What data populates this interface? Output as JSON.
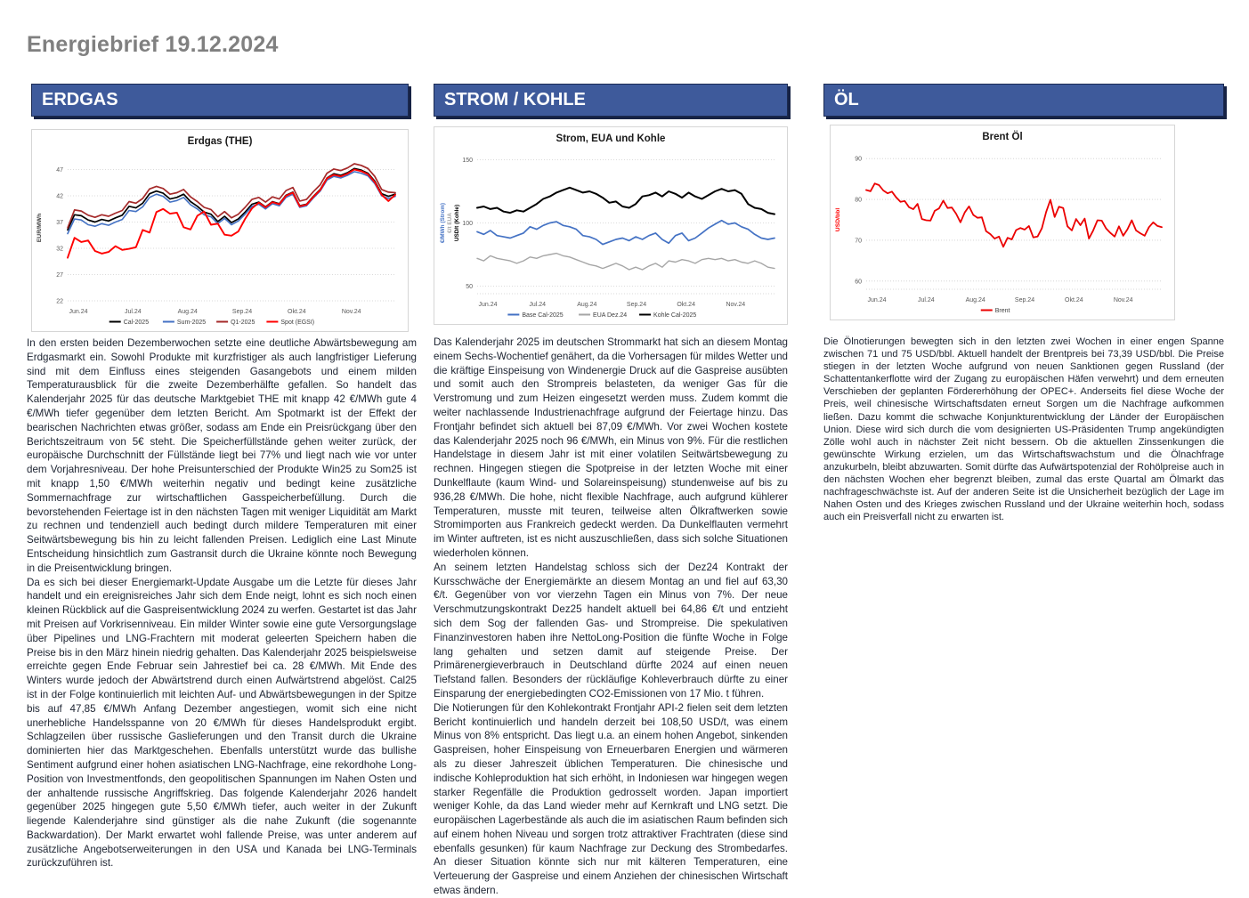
{
  "page": {
    "title": "Energiebrief 19.12.2024"
  },
  "colors": {
    "header_bg": "#3e5a9b",
    "header_shadow": "#162244",
    "title_gray": "#808080",
    "body_text": "#1c2331",
    "series_black": "#000000",
    "series_blue": "#4472c4",
    "series_darkred": "#a52a2a",
    "series_red": "#ff0000",
    "series_gray": "#a6a6a6"
  },
  "columns": [
    {
      "id": "erdgas",
      "header": "ERDGAS",
      "paragraphs": [
        "In den ersten beiden Dezemberwochen setzte eine deutliche Abwärtsbewegung am Erdgasmarkt ein. Sowohl Produkte mit kurzfristiger als auch langfristiger Lieferung sind mit dem Einfluss eines steigenden Gasangebots und einem milden Temperaturausblick für die zweite Dezemberhälfte gefallen. So handelt das Kalenderjahr 2025 für das deutsche Marktgebiet THE mit knapp 42 €/MWh gute 4 €/MWh tiefer gegenüber dem letzten Bericht. Am Spotmarkt ist der Effekt der bearischen Nachrichten etwas größer, sodass am Ende ein Preisrückgang über den Berichtszeitraum von 5€ steht. Die Speicherfüllstände gehen weiter zurück, der europäische Durchschnitt der Füllstände liegt bei 77% und liegt nach wie vor unter dem Vorjahresniveau. Der hohe Preisunterschied der Produkte Win25 zu Som25 ist mit knapp 1,50 €/MWh weiterhin negativ und bedingt keine zusätzliche Sommernachfrage zur wirtschaftlichen Gasspeicherbefüllung. Durch die bevorstehenden Feiertage ist in den nächsten Tagen mit weniger Liquidität am Markt zu rechnen und tendenziell auch bedingt durch mildere Temperaturen mit einer Seitwärtsbewegung bis hin zu leicht fallenden Preisen. Lediglich eine Last Minute Entscheidung hinsichtlich zum Gastransit durch die Ukraine könnte noch Bewegung in die Preisentwicklung bringen.",
        "Da es sich bei dieser Energiemarkt-Update Ausgabe um die Letzte für dieses Jahr handelt und ein ereignisreiches Jahr sich dem Ende neigt, lohnt es sich noch einen kleinen Rückblick auf die Gaspreisentwicklung 2024 zu werfen. Gestartet ist das Jahr mit Preisen auf Vorkrisenniveau. Ein milder Winter sowie eine gute Versorgungslage über Pipelines und LNG-Frachtern mit moderat geleerten Speichern haben die Preise bis in den März hinein niedrig gehalten. Das Kalenderjahr 2025 beispielsweise erreichte gegen Ende Februar sein Jahrestief bei ca. 28 €/MWh. Mit Ende des Winters wurde jedoch der Abwärtstrend durch einen Aufwärtstrend abgelöst. Cal25 ist in der Folge kontinuierlich mit leichten Auf- und Abwärtsbewegungen in der Spitze bis auf 47,85 €/MWh Anfang Dezember angestiegen, womit sich eine nicht unerhebliche Handelsspanne von 20 €/MWh für dieses Handelsprodukt ergibt. Schlagzeilen über russische Gaslieferungen und den Transit durch die Ukraine dominierten hier das Marktgeschehen. Ebenfalls unterstützt wurde das bullishe Sentiment aufgrund einer hohen asiatischen LNG-Nachfrage, eine rekordhohe Long-Position von Investmentfonds, den geopolitischen Spannungen im Nahen Osten und der anhaltende russische Angriffskrieg. Das folgende Kalenderjahr 2026 handelt gegenüber 2025 hingegen gute 5,50 €/MWh tiefer, auch weiter in der Zukunft liegende Kalenderjahre sind günstiger als die nahe Zukunft (die sogenannte Backwardation). Der Markt erwartet wohl fallende Preise, was unter anderem auf zusätzliche Angebotserweiterungen in den USA und Kanada bei LNG-Terminals zurückzuführen ist."
      ]
    },
    {
      "id": "strom-kohle",
      "header": "STROM / KOHLE",
      "paragraphs": [
        "Das Kalenderjahr 2025 im deutschen Strommarkt hat sich an diesem Montag einem Sechs-Wochentief genähert, da die Vorhersagen für mildes Wetter und die kräftige Einspeisung von Windenergie Druck auf die Gaspreise ausübten und somit auch den Strompreis belasteten, da weniger Gas für die Verstromung und zum Heizen eingesetzt werden muss. Zudem kommt die weiter nachlassende Industrienachfrage aufgrund der Feiertage hinzu. Das Frontjahr befindet sich aktuell bei 87,09 €/MWh. Vor zwei Wochen kostete das Kalenderjahr 2025 noch 96 €/MWh, ein Minus von 9%. Für die restlichen Handelstage in diesem Jahr ist mit einer volatilen Seitwärtsbewegung zu rechnen. Hingegen stiegen die Spotpreise in der letzten Woche mit einer Dunkelflaute (kaum Wind- und Solareinspeisung) stundenweise auf bis zu 936,28 €/MWh. Die hohe, nicht flexible Nachfrage, auch aufgrund kühlerer Temperaturen, musste mit teuren, teilweise alten Ölkraftwerken sowie Stromimporten aus Frankreich gedeckt werden. Da Dunkelflauten vermehrt im Winter auftreten, ist es nicht auszuschließen, dass sich solche Situationen wiederholen können.",
        "An seinem letzten Handelstag schloss sich der Dez24 Kontrakt der Kursschwäche der Energiemärkte an diesem Montag an und fiel auf 63,30 €/t. Gegenüber von vor vierzehn Tagen ein Minus von 7%. Der neue Verschmutzungskontrakt Dez25 handelt aktuell bei 64,86 €/t und entzieht sich dem Sog der fallenden Gas- und Strompreise. Die spekulativen Finanzinvestoren haben ihre NettoLong-Position die fünfte Woche in Folge lang gehalten und setzen damit auf steigende Preise. Der Primärenergieverbrauch in Deutschland dürfte 2024 auf einen neuen Tiefstand fallen. Besonders der rückläufige Kohleverbrauch dürfte zu einer Einsparung der energiebedingten CO2-Emissionen von 17 Mio. t führen.",
        "Die Notierungen für den Kohlekontrakt Frontjahr API-2 fielen seit dem letzten Bericht kontinuierlich und handeln derzeit bei 108,50 USD/t, was einem Minus von 8% entspricht. Das liegt u.a. an einem hohen Angebot, sinkenden Gaspreisen, hoher Einspeisung von Erneuerbaren Energien und wärmeren als zu dieser Jahreszeit üblichen Temperaturen. Die chinesische und indische Kohleproduktion hat sich erhöht, in Indoniesen war hingegen wegen starker Regenfälle die Produktion gedrosselt worden. Japan importiert weniger Kohle, da das Land wieder mehr auf Kernkraft und LNG setzt. Die europäischen Lagerbestände als auch die im asiatischen Raum befinden sich auf einem hohen Niveau und sorgen trotz attraktiver Frachtraten (diese sind ebenfalls gesunken) für kaum Nachfrage zur Deckung des Strombedarfes. An dieser Situation könnte sich nur mit kälteren Temperaturen, eine Verteuerung der Gaspreise und einem Anziehen der chinesischen Wirtschaft etwas ändern."
      ]
    },
    {
      "id": "oel",
      "header": "ÖL",
      "paragraphs": [
        "Die Ölnotierungen bewegten sich in den letzten zwei Wochen in einer engen Spanne zwischen 71 und 75 USD/bbl. Aktuell handelt der Brentpreis bei 73,39 USD/bbl. Die Preise stiegen in der letzten Woche aufgrund von neuen Sanktionen gegen Russland (der Schattentankerflotte wird der Zugang zu europäischen Häfen verwehrt) und dem erneuten Verschieben der geplanten Fördererhöhung der OPEC+. Anderseits fiel diese Woche der Preis, weil chinesische Wirtschaftsdaten erneut Sorgen um die Nachfrage aufkommen ließen. Dazu kommt die schwache Konjunkturentwicklung der Länder der Europäischen Union. Diese wird sich durch die vom designierten US-Präsidenten Trump angekündigten Zölle wohl auch in nächster Zeit nicht bessern. Ob die aktuellen Zinssenkungen die gewünschte Wirkung erzielen, um das Wirtschaftswachstum und die Ölnachfrage anzukurbeln, bleibt abzuwarten. Somit dürfte das Aufwärtspotenzial der Rohölpreise auch in den nächsten Wochen eher begrenzt bleiben, zumal das erste Quartal am Ölmarkt das nachfrageschwächste ist. Auf der anderen Seite ist die Unsicherheit bezüglich der Lage im Nahen Osten und des Krieges zwischen Russland und der Ukraine weiterhin hoch, sodass auch ein Preisverfall nicht zu erwarten ist."
      ]
    }
  ],
  "chart_data": [
    {
      "type": "line",
      "title": "Erdgas (THE)",
      "ylabel": "EUR/MWh",
      "ylabel_color": "#404040",
      "ylim": [
        22,
        49.8
      ],
      "yticks": [
        22,
        27,
        32,
        37,
        42,
        47
      ],
      "x_ticks": [
        "Jun.24",
        "Jul.24",
        "Aug.24",
        "Sep.24",
        "Okt.24",
        "Nov.24"
      ],
      "grid": true,
      "legend_position": "bottom",
      "series": [
        {
          "name": "Cal-2025",
          "color": "#000000",
          "width": 1.7,
          "values": [
            35.5,
            38.4,
            38.2,
            37.4,
            37.0,
            37.5,
            37.2,
            37.8,
            38.3,
            40.0,
            39.7,
            40.6,
            42.4,
            42.9,
            42.5,
            41.4,
            41.7,
            42.3,
            40.9,
            40.0,
            38.9,
            38.5,
            37.1,
            38.1,
            36.9,
            37.6,
            38.9,
            40.4,
            40.8,
            39.9,
            40.9,
            40.5,
            42.1,
            42.7,
            40.1,
            40.4,
            41.9,
            43.2,
            45.4,
            46.2,
            45.9,
            46.4,
            47.2,
            46.9,
            46.3,
            44.8,
            42.4,
            41.9,
            42.3
          ]
        },
        {
          "name": "Sum-2025",
          "color": "#4472c4",
          "width": 1.6,
          "values": [
            34.8,
            37.6,
            37.4,
            36.5,
            36.2,
            36.7,
            36.4,
            37.0,
            37.5,
            39.2,
            39.0,
            39.9,
            41.7,
            42.3,
            41.9,
            40.8,
            41.1,
            41.7,
            40.3,
            39.5,
            38.4,
            38.0,
            36.7,
            37.7,
            36.5,
            37.2,
            38.5,
            40.0,
            40.4,
            39.5,
            40.5,
            40.1,
            41.7,
            42.3,
            39.8,
            40.1,
            41.6,
            42.9,
            45.0,
            45.7,
            45.4,
            45.9,
            46.6,
            46.3,
            45.8,
            44.3,
            42.0,
            41.5,
            41.9
          ]
        },
        {
          "name": "Q1-2025",
          "color": "#a52a2a",
          "width": 1.7,
          "values": [
            35.9,
            39.3,
            39.1,
            38.3,
            37.9,
            38.4,
            38.1,
            38.7,
            39.2,
            40.9,
            40.6,
            41.5,
            43.3,
            43.8,
            43.4,
            42.3,
            42.6,
            43.2,
            41.8,
            40.9,
            39.8,
            39.4,
            38.0,
            39.0,
            37.8,
            38.5,
            39.8,
            41.3,
            41.7,
            40.8,
            41.8,
            41.4,
            43.0,
            43.6,
            41.0,
            41.3,
            42.8,
            44.1,
            46.3,
            47.1,
            46.8,
            47.3,
            48.1,
            47.8,
            47.2,
            45.7,
            43.2,
            42.7,
            42.6
          ]
        },
        {
          "name": "Spot (EGSI)",
          "color": "#ff0000",
          "width": 1.9,
          "values": [
            30.2,
            34.0,
            33.2,
            33.5,
            31.5,
            31.0,
            31.3,
            32.4,
            31.7,
            31.9,
            32.2,
            35.5,
            35.0,
            38.9,
            39.5,
            38.6,
            38.8,
            36.0,
            35.6,
            38.2,
            39.0,
            36.5,
            36.7,
            34.6,
            34.4,
            35.2,
            37.6,
            39.6,
            40.7,
            39.8,
            40.8,
            40.4,
            42.0,
            42.6,
            40.0,
            40.3,
            41.8,
            43.1,
            45.3,
            46.0,
            45.7,
            46.2,
            47.0,
            46.7,
            46.1,
            44.6,
            42.2,
            41.0,
            42.2
          ]
        }
      ]
    },
    {
      "type": "line",
      "title": "Strom, EUA und Kohle",
      "ylabels": [
        {
          "text": "€/MWh (Strom)",
          "color": "#4472c4"
        },
        {
          "text": "€/t EUA",
          "color": "#a6a6a6"
        },
        {
          "text": "USD/t (Kohle)",
          "color": "#000000"
        }
      ],
      "ylim": [
        44,
        156
      ],
      "yticks": [
        50,
        100,
        150
      ],
      "x_ticks": [
        "Jun.24",
        "Jul.24",
        "Aug.24",
        "Sep.24",
        "Okt.24",
        "Nov.24"
      ],
      "grid": true,
      "legend_position": "bottom",
      "series": [
        {
          "name": "Base Cal-2025",
          "color": "#4472c4",
          "width": 1.7,
          "values": [
            93,
            91,
            94,
            90,
            89,
            88,
            90,
            92,
            97,
            95,
            98,
            100,
            101,
            98,
            97,
            95,
            90,
            89,
            87,
            83,
            85,
            87,
            88,
            86,
            89,
            87,
            90,
            92,
            87,
            84,
            90,
            92,
            86,
            88,
            92,
            96,
            99,
            102,
            99,
            100,
            97,
            95,
            91,
            88,
            87,
            88
          ]
        },
        {
          "name": "EUA Dez.24",
          "color": "#a6a6a6",
          "width": 1.4,
          "values": [
            72,
            70,
            74,
            72,
            71,
            70,
            68,
            70,
            73,
            72,
            74,
            75,
            76,
            74,
            73,
            71,
            69,
            67,
            66,
            64,
            66,
            68,
            66,
            63,
            65,
            63,
            66,
            68,
            65,
            70,
            69,
            71,
            70,
            68,
            71,
            72,
            71,
            72,
            70,
            71,
            69,
            68,
            70,
            68,
            65,
            64
          ]
        },
        {
          "name": "Kohle Cal-2025",
          "color": "#000000",
          "width": 2,
          "values": [
            112,
            113,
            111,
            112,
            109,
            108,
            110,
            109,
            112,
            115,
            119,
            121,
            124,
            126,
            128,
            126,
            124,
            125,
            123,
            120,
            116,
            117,
            113,
            112,
            115,
            121,
            122,
            124,
            121,
            125,
            123,
            120,
            124,
            121,
            119,
            122,
            125,
            127,
            125,
            126,
            123,
            115,
            112,
            111,
            108,
            107
          ]
        }
      ]
    },
    {
      "type": "line",
      "title": "Brent Öl",
      "ylabel": "USD/bbl",
      "ylabel_color": "#ff0000",
      "ylim": [
        58,
        92
      ],
      "yticks": [
        60,
        70,
        80,
        90
      ],
      "x_ticks": [
        "Jun.24",
        "Jul.24",
        "Aug.24",
        "Sep.24",
        "Okt.24",
        "Nov.24"
      ],
      "grid": true,
      "legend_position": "bottom",
      "series": [
        {
          "name": "Brent",
          "color": "#eb0000",
          "width": 1.8,
          "values": [
            82.3,
            82.0,
            83.9,
            83.5,
            82.2,
            81.5,
            81.9,
            80.5,
            79.4,
            79.6,
            78.1,
            77.6,
            78.9,
            75.2,
            74.9,
            74.8,
            77.2,
            77.8,
            79.7,
            77.9,
            78.0,
            76.5,
            74.4,
            76.8,
            78.3,
            76.2,
            75.5,
            75.6,
            72.2,
            71.5,
            70.4,
            70.9,
            68.4,
            70.6,
            70.2,
            72.5,
            73.0,
            72.6,
            73.5,
            70.7,
            70.9,
            72.9,
            76.9,
            79.9,
            75.7,
            78.2,
            77.9,
            73.4,
            72.4,
            75.2,
            73.7,
            75.3,
            70.4,
            72.4,
            74.9,
            74.8,
            72.9,
            71.8,
            70.9,
            73.4,
            71.1,
            72.7,
            74.9,
            72.4,
            71.7,
            71.1,
            73.2,
            74.4,
            73.5,
            73.2
          ]
        }
      ]
    }
  ]
}
